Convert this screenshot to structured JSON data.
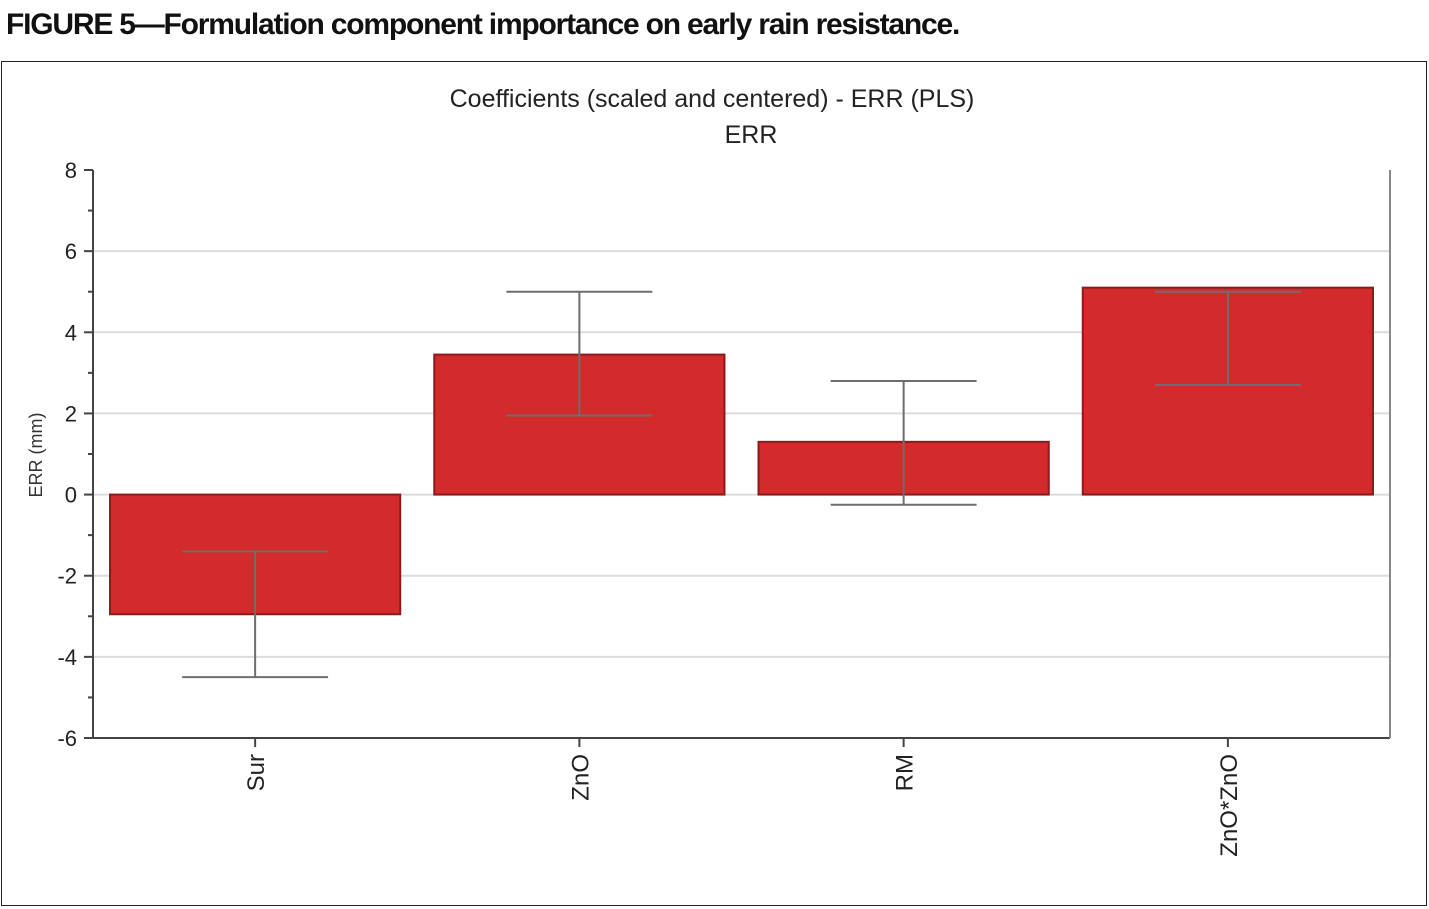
{
  "figure_caption": "FIGURE 5—Formulation component importance on early rain resistance.",
  "chart_data": {
    "type": "bar",
    "title": "Coefficients (scaled and centered) - ERR (PLS)",
    "subtitle": "ERR",
    "xlabel": "",
    "ylabel": "ERR (mm)",
    "categories": [
      "Sur",
      "ZnO",
      "RM",
      "ZnO*ZnO"
    ],
    "values": [
      -2.95,
      3.45,
      1.3,
      5.1
    ],
    "error_bars": [
      {
        "low": -4.5,
        "high": -1.4
      },
      {
        "low": 1.95,
        "high": 5.0
      },
      {
        "low": -0.25,
        "high": 2.8
      },
      {
        "low": 2.7,
        "high": 5.0
      }
    ],
    "ylim": [
      -6,
      8
    ],
    "yticks": [
      "-6",
      "-4",
      "-2",
      "0",
      "2",
      "4",
      "6",
      "8"
    ],
    "grid": true,
    "colors": {
      "bar": "#d32a2b",
      "bar_edge": "#8c1a1c",
      "error": "#6e6e6e",
      "grid": "#dcdcdc"
    }
  }
}
